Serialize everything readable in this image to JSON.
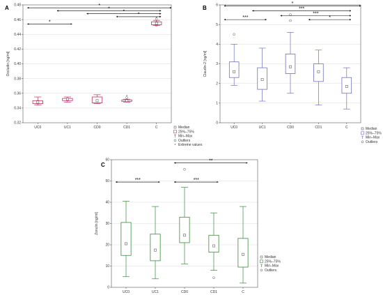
{
  "chart_data": [
    {
      "type": "boxplot",
      "panel_label": "A",
      "ylabel": "Occludin [ng/ml]",
      "ylim": [
        0.32,
        0.48
      ],
      "yticks": [
        0.32,
        0.34,
        0.36,
        0.38,
        0.4,
        0.42,
        0.44,
        0.46,
        0.48
      ],
      "categories": [
        "UC0",
        "UC1",
        "CD0",
        "CD1",
        "C"
      ],
      "color": "#c0305a",
      "boxes": [
        {
          "min": 0.344,
          "q1": 0.346,
          "median": 0.348,
          "q3": 0.35,
          "max": 0.355,
          "outliers": [],
          "extremes": []
        },
        {
          "min": 0.348,
          "q1": 0.35,
          "median": 0.352,
          "q3": 0.353,
          "max": 0.355,
          "outliers": [],
          "extremes": []
        },
        {
          "min": 0.346,
          "q1": 0.347,
          "median": 0.35,
          "q3": 0.355,
          "max": 0.358,
          "outliers": [],
          "extremes": []
        },
        {
          "min": 0.348,
          "q1": 0.349,
          "median": 0.35,
          "q3": 0.351,
          "max": 0.352,
          "outliers": [
            0.354
          ],
          "extremes": [
            0.356
          ]
        },
        {
          "min": 0.452,
          "q1": 0.453,
          "median": 0.455,
          "q3": 0.457,
          "max": 0.459,
          "outliers": [
            0.461,
            0.452
          ],
          "extremes": [
            0.462
          ]
        }
      ],
      "significance": [
        {
          "from": 0,
          "to": 1,
          "y": 0.454,
          "label": "*"
        },
        {
          "from": 0,
          "to": 4,
          "y": 0.476,
          "label": "*"
        },
        {
          "from": 1,
          "to": 4,
          "y": 0.472,
          "label": "*"
        },
        {
          "from": 2,
          "to": 4,
          "y": 0.468,
          "label": "*"
        },
        {
          "from": 3,
          "to": 4,
          "y": 0.464,
          "label": "*"
        }
      ],
      "legend": [
        "Median",
        "25%–75%",
        "Min–Max",
        "Outliers",
        "Extreme values"
      ]
    },
    {
      "type": "boxplot",
      "panel_label": "B",
      "ylabel": "Claudin-2 [ng/ml]",
      "ylim": [
        0,
        6
      ],
      "yticks": [
        0,
        1,
        2,
        3,
        4,
        5,
        6
      ],
      "categories": [
        "UC0",
        "UC1",
        "CD0",
        "CD1",
        "C"
      ],
      "color": "#7070c0",
      "boxes": [
        {
          "min": 1.9,
          "q1": 2.3,
          "median": 2.6,
          "q3": 3.1,
          "max": 4.0,
          "outliers": [
            4.5
          ],
          "extremes": []
        },
        {
          "min": 1.1,
          "q1": 1.7,
          "median": 2.2,
          "q3": 2.8,
          "max": 3.8,
          "outliers": [],
          "extremes": []
        },
        {
          "min": 1.5,
          "q1": 2.5,
          "median": 2.85,
          "q3": 3.5,
          "max": 4.6,
          "outliers": [
            5.2,
            5.5
          ],
          "extremes": []
        },
        {
          "min": 0.9,
          "q1": 2.1,
          "median": 2.6,
          "q3": 3.0,
          "max": 3.7,
          "outliers": [],
          "extremes": []
        },
        {
          "min": 0.7,
          "q1": 1.5,
          "median": 1.85,
          "q3": 2.3,
          "max": 2.8,
          "outliers": [],
          "extremes": []
        }
      ],
      "significance": [
        {
          "from": 0,
          "to": 1,
          "y": 5.25,
          "label": "***"
        },
        {
          "from": 0,
          "to": 4,
          "y": 5.95,
          "label": "*"
        },
        {
          "from": 1,
          "to": 4,
          "y": 5.7,
          "label": "***"
        },
        {
          "from": 2,
          "to": 4,
          "y": 5.45,
          "label": "***"
        },
        {
          "from": 3,
          "to": 4,
          "y": 5.25,
          "label": "*"
        }
      ],
      "legend": [
        "Median",
        "25%–75%",
        "Min–Max",
        "Outliers"
      ]
    },
    {
      "type": "boxplot",
      "panel_label": "C",
      "ylabel": "Zonulin [ng/ml]",
      "ylim": [
        0,
        60
      ],
      "yticks": [
        0,
        10,
        20,
        30,
        40,
        50,
        60
      ],
      "categories": [
        "UC0",
        "UC1",
        "CD0",
        "CD1",
        "C"
      ],
      "color": "#3a8a3a",
      "boxes": [
        {
          "min": 5,
          "q1": 15,
          "median": 20.5,
          "q3": 30.5,
          "max": 40.5,
          "outliers": [],
          "extremes": []
        },
        {
          "min": 4,
          "q1": 12.5,
          "median": 17.5,
          "q3": 25,
          "max": 38,
          "outliers": [],
          "extremes": []
        },
        {
          "min": 11,
          "q1": 21,
          "median": 24.5,
          "q3": 33,
          "max": 47,
          "outliers": [
            55.5
          ],
          "extremes": []
        },
        {
          "min": 8,
          "q1": 16.5,
          "median": 19.5,
          "q3": 24.5,
          "max": 35,
          "outliers": [
            4.5
          ],
          "extremes": []
        },
        {
          "min": 2,
          "q1": 9.5,
          "median": 15.5,
          "q3": 23,
          "max": 38,
          "outliers": [],
          "extremes": []
        }
      ],
      "significance": [
        {
          "from": 0,
          "to": 1,
          "y": 49.5,
          "label": "***"
        },
        {
          "from": 2,
          "to": 4,
          "y": 58.5,
          "label": "**"
        },
        {
          "from": 2,
          "to": 3,
          "y": 49.5,
          "label": "***"
        }
      ],
      "legend": [
        "Median",
        "25%–75%",
        "Min–Max",
        "Outliers"
      ]
    }
  ]
}
